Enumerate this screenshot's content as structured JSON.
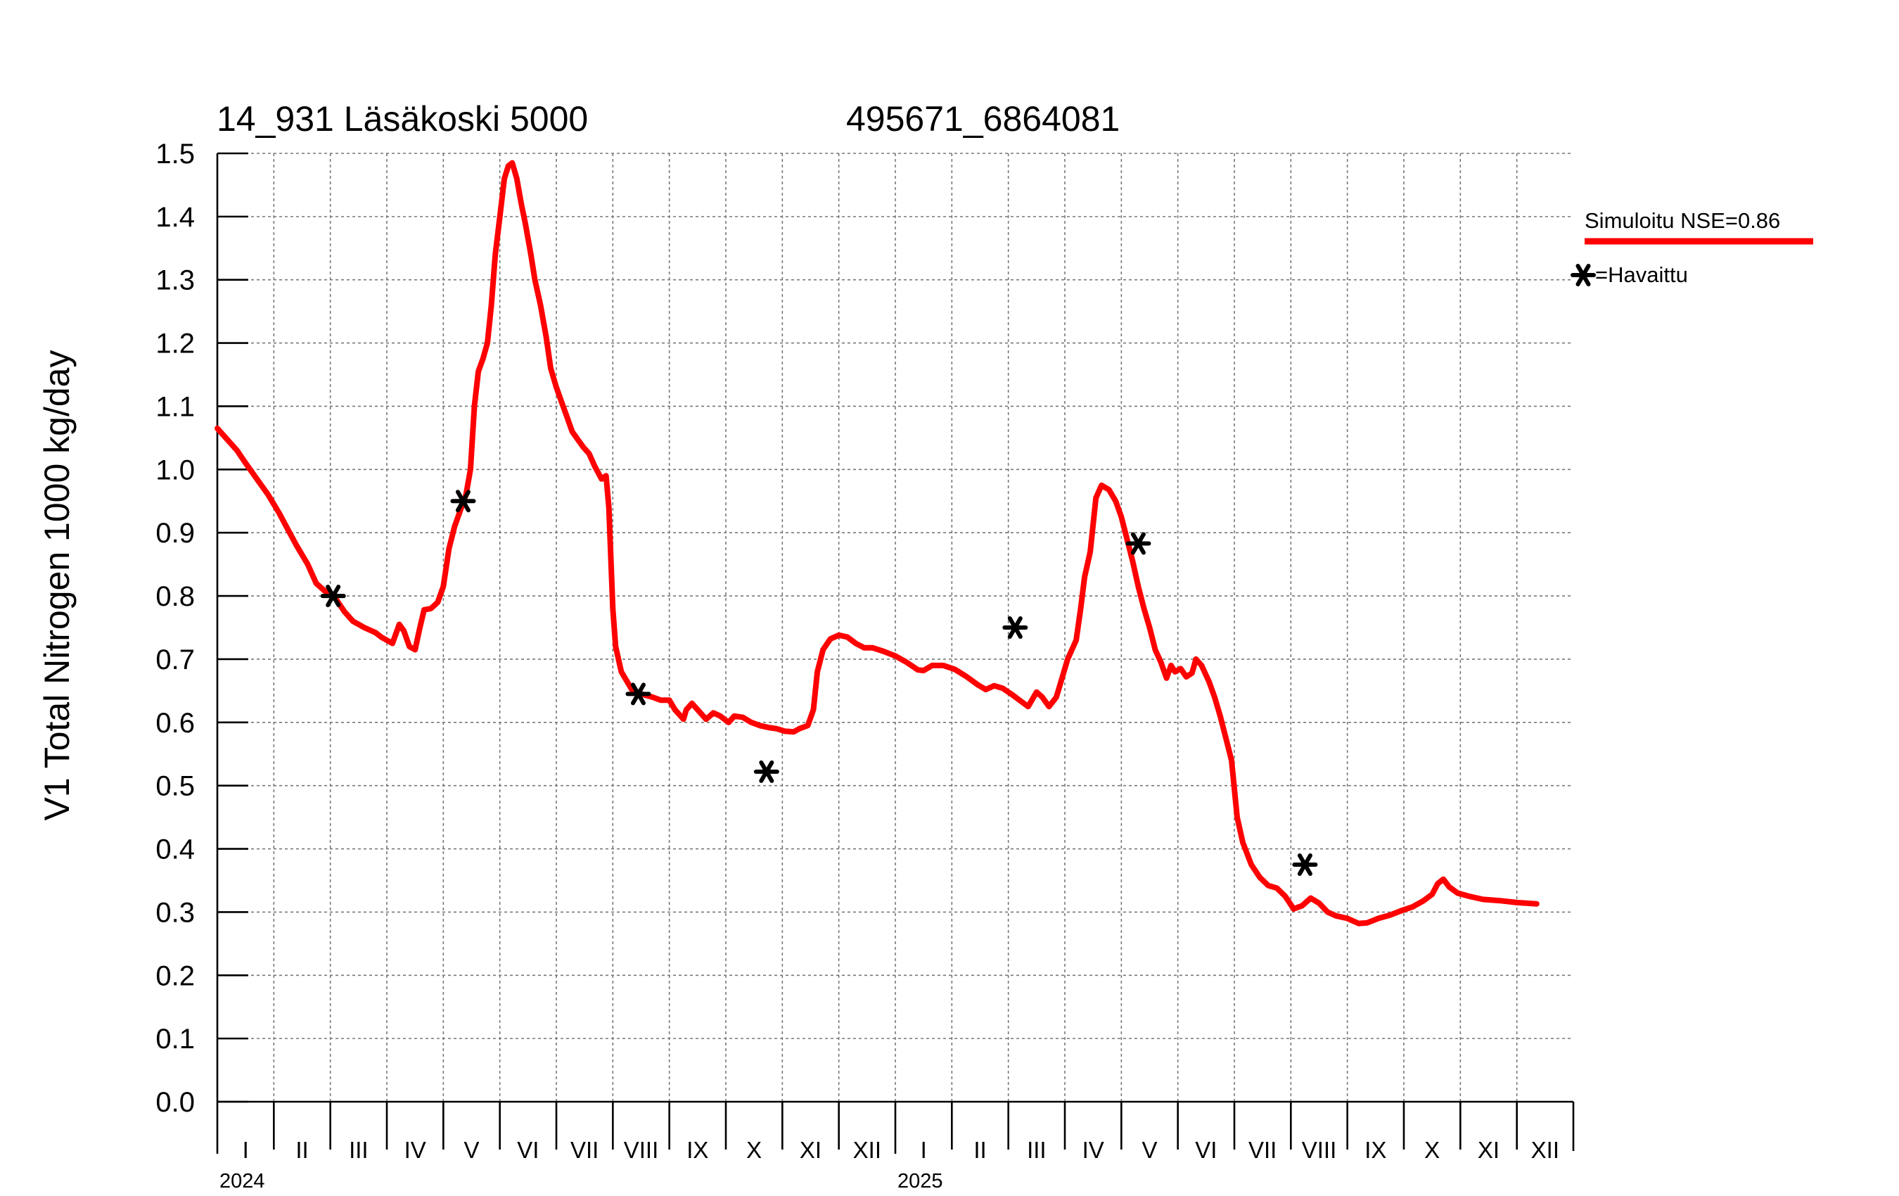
{
  "chart_data": {
    "type": "line",
    "title": "14_931 Läsäkoski 5000",
    "subtitle": "495671_6864081",
    "ylabel": "V1 Total Nitrogen 1000 kg/day",
    "ylim": [
      0.0,
      1.5
    ],
    "yticks": [
      "0.0",
      "0.1",
      "0.2",
      "0.3",
      "0.4",
      "0.5",
      "0.6",
      "0.7",
      "0.8",
      "0.9",
      "1.0",
      "1.1",
      "1.2",
      "1.3",
      "1.4",
      "1.5"
    ],
    "x_range_months": [
      0,
      24
    ],
    "month_labels": [
      "I",
      "II",
      "III",
      "IV",
      "V",
      "VI",
      "VII",
      "VIII",
      "IX",
      "X",
      "XI",
      "XII",
      "I",
      "II",
      "III",
      "IV",
      "V",
      "VI",
      "VII",
      "VIII",
      "IX",
      "X",
      "XI",
      "XII"
    ],
    "year_labels": [
      {
        "text": "2024",
        "month_index": 0
      },
      {
        "text": "2025",
        "month_index": 12
      }
    ],
    "grid": true,
    "legend_placement": "right",
    "colors": {
      "simulated": "#ff0000",
      "observed": "#000000"
    },
    "series": [
      {
        "name": "Simuloitu NSE=0.86",
        "style": "line",
        "x_unit": "months since 2024-01-01",
        "points": [
          [
            0.0,
            1.065
          ],
          [
            0.2,
            1.045
          ],
          [
            0.35,
            1.03
          ],
          [
            0.5,
            1.01
          ],
          [
            0.7,
            0.985
          ],
          [
            0.9,
            0.96
          ],
          [
            1.1,
            0.93
          ],
          [
            1.25,
            0.905
          ],
          [
            1.4,
            0.88
          ],
          [
            1.6,
            0.85
          ],
          [
            1.75,
            0.82
          ],
          [
            1.9,
            0.808
          ],
          [
            2.1,
            0.795
          ],
          [
            2.25,
            0.775
          ],
          [
            2.4,
            0.76
          ],
          [
            2.6,
            0.75
          ],
          [
            2.8,
            0.742
          ],
          [
            2.9,
            0.735
          ],
          [
            3.1,
            0.725
          ],
          [
            3.22,
            0.755
          ],
          [
            3.3,
            0.745
          ],
          [
            3.4,
            0.72
          ],
          [
            3.5,
            0.715
          ],
          [
            3.58,
            0.748
          ],
          [
            3.66,
            0.778
          ],
          [
            3.78,
            0.78
          ],
          [
            3.9,
            0.79
          ],
          [
            4.0,
            0.815
          ],
          [
            4.1,
            0.875
          ],
          [
            4.2,
            0.91
          ],
          [
            4.3,
            0.935
          ],
          [
            4.4,
            0.96
          ],
          [
            4.48,
            1.0
          ],
          [
            4.55,
            1.1
          ],
          [
            4.62,
            1.155
          ],
          [
            4.7,
            1.175
          ],
          [
            4.78,
            1.2
          ],
          [
            4.85,
            1.26
          ],
          [
            4.92,
            1.34
          ],
          [
            5.0,
            1.4
          ],
          [
            5.08,
            1.46
          ],
          [
            5.15,
            1.48
          ],
          [
            5.22,
            1.485
          ],
          [
            5.3,
            1.46
          ],
          [
            5.38,
            1.42
          ],
          [
            5.45,
            1.39
          ],
          [
            5.55,
            1.34
          ],
          [
            5.62,
            1.3
          ],
          [
            5.72,
            1.26
          ],
          [
            5.82,
            1.21
          ],
          [
            5.9,
            1.16
          ],
          [
            6.0,
            1.13
          ],
          [
            6.08,
            1.11
          ],
          [
            6.18,
            1.085
          ],
          [
            6.28,
            1.06
          ],
          [
            6.4,
            1.045
          ],
          [
            6.48,
            1.035
          ],
          [
            6.58,
            1.025
          ],
          [
            6.68,
            1.005
          ],
          [
            6.8,
            0.985
          ],
          [
            6.88,
            0.99
          ],
          [
            6.93,
            0.94
          ],
          [
            7.0,
            0.78
          ],
          [
            7.05,
            0.72
          ],
          [
            7.15,
            0.68
          ],
          [
            7.25,
            0.665
          ],
          [
            7.35,
            0.65
          ],
          [
            7.5,
            0.645
          ],
          [
            7.7,
            0.64
          ],
          [
            7.85,
            0.635
          ],
          [
            8.0,
            0.635
          ],
          [
            8.1,
            0.62
          ],
          [
            8.25,
            0.605
          ],
          [
            8.3,
            0.62
          ],
          [
            8.4,
            0.63
          ],
          [
            8.55,
            0.615
          ],
          [
            8.65,
            0.605
          ],
          [
            8.78,
            0.615
          ],
          [
            8.9,
            0.61
          ],
          [
            9.05,
            0.6
          ],
          [
            9.15,
            0.61
          ],
          [
            9.3,
            0.608
          ],
          [
            9.45,
            0.6
          ],
          [
            9.6,
            0.595
          ],
          [
            9.75,
            0.592
          ],
          [
            9.9,
            0.59
          ],
          [
            10.05,
            0.586
          ],
          [
            10.2,
            0.585
          ],
          [
            10.3,
            0.59
          ],
          [
            10.45,
            0.595
          ],
          [
            10.55,
            0.62
          ],
          [
            10.62,
            0.68
          ],
          [
            10.72,
            0.715
          ],
          [
            10.85,
            0.732
          ],
          [
            11.0,
            0.738
          ],
          [
            11.15,
            0.735
          ],
          [
            11.3,
            0.725
          ],
          [
            11.45,
            0.718
          ],
          [
            11.6,
            0.718
          ],
          [
            11.8,
            0.712
          ],
          [
            12.0,
            0.705
          ],
          [
            12.2,
            0.695
          ],
          [
            12.4,
            0.683
          ],
          [
            12.5,
            0.682
          ],
          [
            12.65,
            0.69
          ],
          [
            12.85,
            0.69
          ],
          [
            13.05,
            0.684
          ],
          [
            13.25,
            0.673
          ],
          [
            13.45,
            0.66
          ],
          [
            13.6,
            0.652
          ],
          [
            13.75,
            0.658
          ],
          [
            13.9,
            0.654
          ],
          [
            14.05,
            0.645
          ],
          [
            14.2,
            0.635
          ],
          [
            14.35,
            0.625
          ],
          [
            14.5,
            0.648
          ],
          [
            14.6,
            0.64
          ],
          [
            14.72,
            0.625
          ],
          [
            14.85,
            0.64
          ],
          [
            14.95,
            0.67
          ],
          [
            15.05,
            0.7
          ],
          [
            15.2,
            0.73
          ],
          [
            15.28,
            0.78
          ],
          [
            15.35,
            0.83
          ],
          [
            15.45,
            0.87
          ],
          [
            15.55,
            0.955
          ],
          [
            15.65,
            0.975
          ],
          [
            15.78,
            0.968
          ],
          [
            15.9,
            0.95
          ],
          [
            16.0,
            0.925
          ],
          [
            16.1,
            0.89
          ],
          [
            16.2,
            0.855
          ],
          [
            16.3,
            0.815
          ],
          [
            16.4,
            0.78
          ],
          [
            16.5,
            0.75
          ],
          [
            16.6,
            0.715
          ],
          [
            16.7,
            0.695
          ],
          [
            16.8,
            0.67
          ],
          [
            16.88,
            0.69
          ],
          [
            16.95,
            0.68
          ],
          [
            17.05,
            0.685
          ],
          [
            17.15,
            0.672
          ],
          [
            17.25,
            0.678
          ],
          [
            17.32,
            0.7
          ],
          [
            17.42,
            0.69
          ],
          [
            17.55,
            0.665
          ],
          [
            17.65,
            0.64
          ],
          [
            17.75,
            0.61
          ],
          [
            17.85,
            0.575
          ],
          [
            17.95,
            0.54
          ],
          [
            18.05,
            0.45
          ],
          [
            18.15,
            0.41
          ],
          [
            18.3,
            0.375
          ],
          [
            18.45,
            0.355
          ],
          [
            18.6,
            0.342
          ],
          [
            18.75,
            0.338
          ],
          [
            18.9,
            0.325
          ],
          [
            19.05,
            0.305
          ],
          [
            19.2,
            0.31
          ],
          [
            19.35,
            0.322
          ],
          [
            19.5,
            0.314
          ],
          [
            19.65,
            0.3
          ],
          [
            19.8,
            0.294
          ],
          [
            20.0,
            0.29
          ],
          [
            20.2,
            0.282
          ],
          [
            20.35,
            0.283
          ],
          [
            20.55,
            0.29
          ],
          [
            20.75,
            0.295
          ],
          [
            20.95,
            0.302
          ],
          [
            21.15,
            0.308
          ],
          [
            21.35,
            0.318
          ],
          [
            21.5,
            0.328
          ],
          [
            21.6,
            0.345
          ],
          [
            21.7,
            0.352
          ],
          [
            21.8,
            0.34
          ],
          [
            21.95,
            0.33
          ],
          [
            22.15,
            0.325
          ],
          [
            22.4,
            0.32
          ],
          [
            22.7,
            0.318
          ],
          [
            23.0,
            0.315
          ],
          [
            23.35,
            0.313
          ]
        ]
      },
      {
        "name": "=Havaittu",
        "style": "scatter",
        "marker": "asterisk",
        "x_unit": "months since 2024-01-01",
        "points": [
          [
            2.05,
            0.8
          ],
          [
            4.35,
            0.95
          ],
          [
            7.45,
            0.645
          ],
          [
            9.72,
            0.522
          ],
          [
            14.12,
            0.75
          ],
          [
            16.3,
            0.883
          ],
          [
            19.25,
            0.375
          ]
        ]
      }
    ]
  }
}
